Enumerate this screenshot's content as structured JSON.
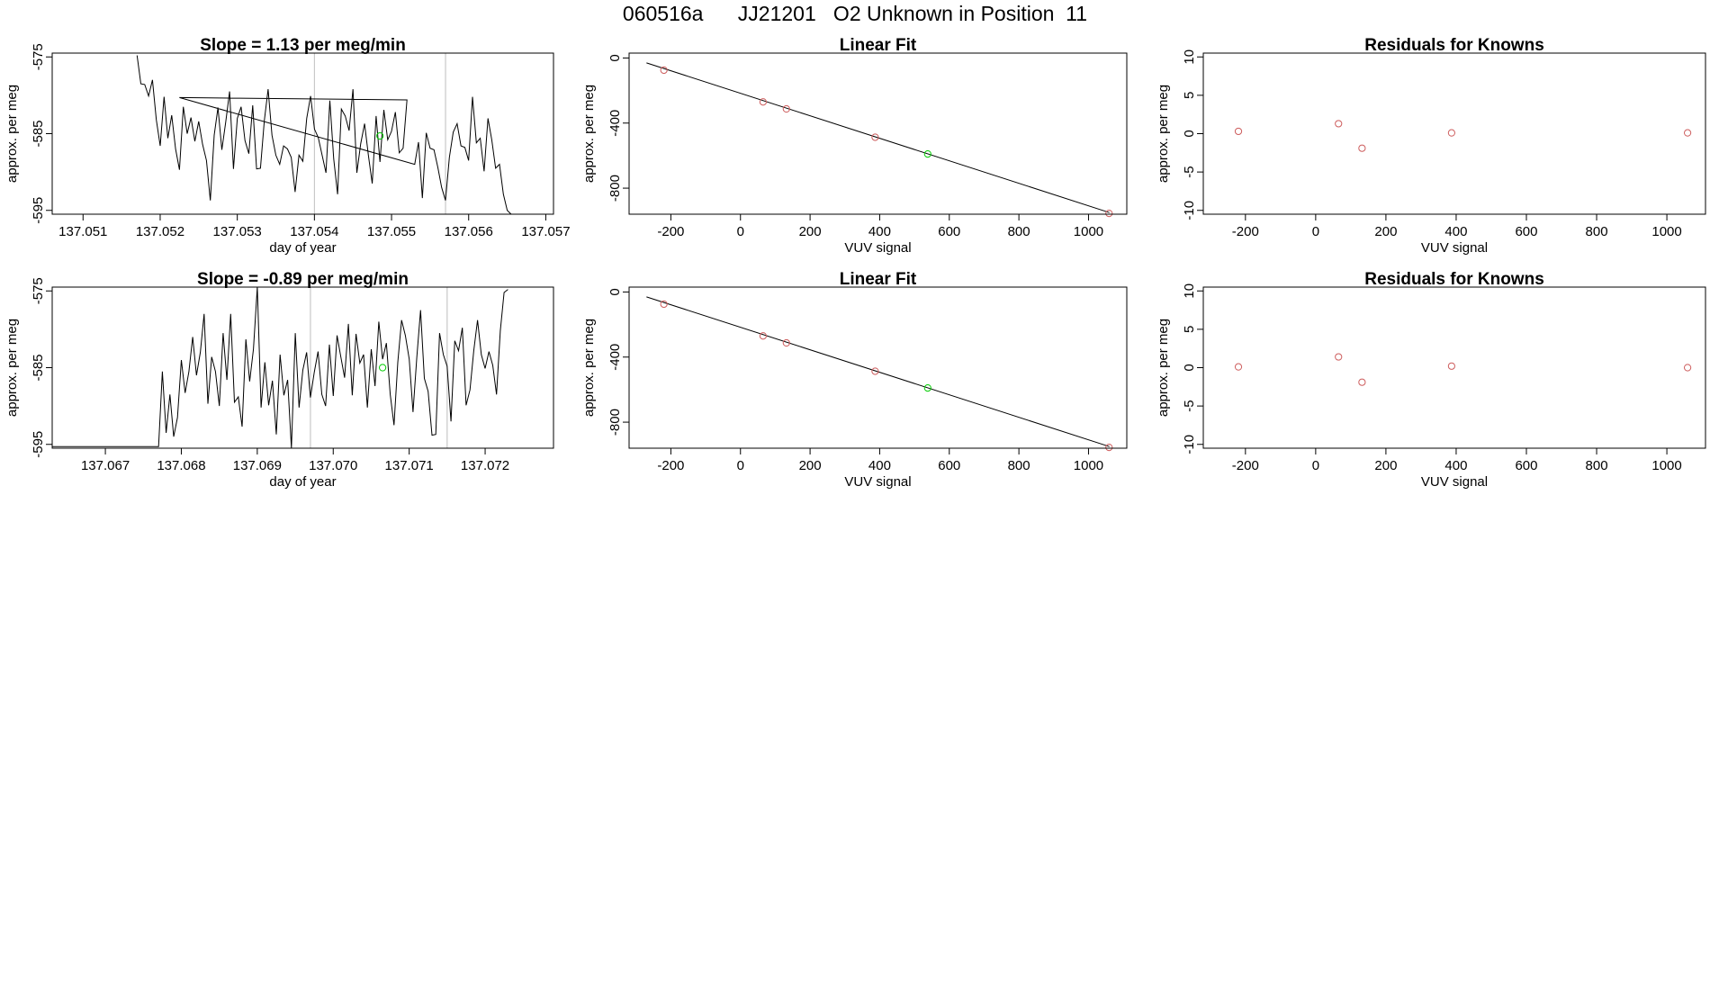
{
  "figure": {
    "title": "060516a      JJ21201   O2 Unknown in Position  11"
  },
  "colors": {
    "series": "#000000",
    "known_point": "#cd5c5c",
    "unknown_point": "#00cc00",
    "gridline": "#bebebe",
    "fit_line": "#000000"
  },
  "chart_data": [
    {
      "type": "line",
      "row": 1,
      "title": "Slope =  1.13  per meg/min",
      "xlabel": "day of year",
      "ylabel": "approx. per meg",
      "xlim": [
        137.0506,
        137.0571
      ],
      "ylim": [
        -595.5,
        -574.5
      ],
      "xticks": [
        137.051,
        137.052,
        137.053,
        137.054,
        137.055,
        137.056,
        137.057
      ],
      "xtick_labels": [
        "137.051",
        "137.052",
        "137.053",
        "137.054",
        "137.055",
        "137.056",
        "137.057"
      ],
      "yticks": [
        -575,
        -585,
        -595
      ],
      "ytick_labels": [
        "-575",
        "-585",
        "-595"
      ],
      "vlines": [
        137.054,
        137.0557
      ],
      "series": [
        {
          "x": [
            137.0517,
            137.05175,
            137.0518,
            137.05185,
            137.0519,
            137.05195,
            137.052,
            137.05205,
            137.0521,
            137.05215,
            137.0522,
            137.05225,
            137.0523,
            137.05235,
            137.0524,
            137.05245,
            137.0525,
            137.05255,
            137.0526,
            137.05265,
            137.0527,
            137.05275,
            137.0528,
            137.05285,
            137.0529,
            137.05295,
            137.053,
            137.05305,
            137.0531,
            137.05315,
            137.0532,
            137.05325,
            137.0533,
            137.05335,
            137.0534,
            137.05345,
            137.0535,
            137.05355,
            137.0536,
            137.05365,
            137.0537,
            137.05375,
            137.0538,
            137.05385,
            137.0539,
            137.05395,
            137.054,
            137.05405,
            137.0541,
            137.05415,
            137.0542,
            137.05425,
            137.0543,
            137.05435,
            137.0544,
            137.05445,
            137.0545,
            137.05455,
            137.0546,
            137.05465,
            137.0547,
            137.05475,
            137.0548,
            137.05485,
            137.0549,
            137.05495,
            137.055,
            137.05505,
            137.0551,
            137.05515,
            137.0552,
            137.05225,
            137.0553,
            137.05535,
            137.0554,
            137.05545,
            137.0555,
            137.05555,
            137.0556,
            137.05565,
            137.0557,
            137.05575,
            137.0558,
            137.05585,
            137.0559,
            137.05595,
            137.056,
            137.05605,
            137.0561,
            137.05615,
            137.0562,
            137.05625,
            137.0563,
            137.05635,
            137.0564,
            137.05645,
            137.0565,
            137.05655
          ],
          "y": [
            -574.8,
            -578.5,
            -578.6,
            -580.1,
            -578.0,
            -583.2,
            -586.6,
            -580.2,
            -585.6,
            -582.6,
            -587.0,
            -589.7,
            -581.5,
            -585.0,
            -582.9,
            -586.0,
            -583.4,
            -586.4,
            -588.5,
            -593.7,
            -585.2,
            -581.6,
            -587.1,
            -583.5,
            -579.5,
            -589.6,
            -583.0,
            -581.5,
            -585.9,
            -587.6,
            -581.3,
            -589.6,
            -589.5,
            -583.3,
            -579.2,
            -585.2,
            -587.8,
            -589.0,
            -586.6,
            -587.0,
            -588.1,
            -592.6,
            -587.8,
            -588.6,
            -583.0,
            -580.1,
            -584.4,
            -585.5,
            -587.8,
            -590.1,
            -580.7,
            -588.3,
            -592.9,
            -581.8,
            -582.7,
            -584.6,
            -579.2,
            -590.1,
            -586.3,
            -583.7,
            -587.8,
            -591.5,
            -582.7,
            -588.7,
            -581.9,
            -585.8,
            -584.7,
            -582.2,
            -587.5,
            -586.9,
            -580.6,
            -580.3,
            -589.0,
            -586.1,
            -593.4,
            -584.9,
            -586.9,
            -587.1,
            -589.4,
            -592.0,
            -593.7,
            -588.1,
            -584.8,
            -583.7,
            -586.6,
            -586.8,
            -588.5,
            -580.2,
            -586.2,
            -585.6,
            -589.9,
            -583.0,
            -585.8,
            -589.5,
            -589.0,
            -592.9,
            -595.0,
            -595.5
          ]
        }
      ],
      "highlight_points": [
        {
          "x": 137.05485,
          "y": -585.3,
          "color": "#00cc00"
        }
      ]
    },
    {
      "type": "scatter",
      "row": 1,
      "title": "Linear Fit",
      "xlabel": "VUV signal",
      "ylabel": "approx. per meg",
      "xlim": [
        -320,
        1110
      ],
      "ylim": [
        -960,
        30
      ],
      "xticks": [
        -200,
        0,
        200,
        400,
        600,
        800,
        1000
      ],
      "xtick_labels": [
        "-200",
        "0",
        "200",
        "400",
        "600",
        "800",
        "1000"
      ],
      "yticks": [
        0,
        -400,
        -800
      ],
      "ytick_labels": [
        "0",
        "-400",
        "-800"
      ],
      "fit_line": {
        "x": [
          -270,
          1060
        ],
        "y": [
          -30,
          -950
        ]
      },
      "series": [
        {
          "x": [
            -220,
            65,
            132,
            387,
            1059
          ],
          "y": [
            -75,
            -270,
            -313,
            -487,
            -955
          ],
          "color": "#cd5c5c"
        },
        {
          "x": [
            538
          ],
          "y": [
            -590
          ],
          "color": "#00cc00"
        }
      ]
    },
    {
      "type": "scatter",
      "row": 1,
      "title": "Residuals for Knowns",
      "xlabel": "VUV signal",
      "ylabel": "approx. per meg",
      "xlim": [
        -320,
        1110
      ],
      "ylim": [
        -10.5,
        10.5
      ],
      "xticks": [
        -200,
        0,
        200,
        400,
        600,
        800,
        1000
      ],
      "xtick_labels": [
        "-200",
        "0",
        "200",
        "400",
        "600",
        "800",
        "1000"
      ],
      "yticks": [
        10,
        5,
        0,
        -5,
        -10
      ],
      "ytick_labels": [
        "10",
        "5",
        "0",
        "-5",
        "-10"
      ],
      "series": [
        {
          "x": [
            -220,
            65,
            132,
            387,
            1059
          ],
          "y": [
            0.3,
            1.3,
            -1.9,
            0.1,
            0.1
          ],
          "color": "#cd5c5c"
        }
      ]
    },
    {
      "type": "line",
      "row": 2,
      "title": "Slope =  -0.89  per meg/min",
      "xlabel": "day of year",
      "ylabel": "approx. per meg",
      "xlim": [
        137.0663,
        137.0729
      ],
      "ylim": [
        -595.5,
        -574.5
      ],
      "xticks": [
        137.067,
        137.068,
        137.069,
        137.07,
        137.071,
        137.072
      ],
      "xtick_labels": [
        "137.067",
        "137.068",
        "137.069",
        "137.070",
        "137.071",
        "137.072"
      ],
      "yticks": [
        -575,
        -585,
        -595
      ],
      "ytick_labels": [
        "-575",
        "-585",
        "-595"
      ],
      "vlines": [
        137.0697,
        137.0715
      ],
      "series": [
        {
          "x": [
            137.0663,
            137.0677,
            137.06775,
            137.0678,
            137.06785,
            137.0679,
            137.06795,
            137.068,
            137.06805,
            137.0681,
            137.06815,
            137.0682,
            137.06825,
            137.0683,
            137.06835,
            137.0684,
            137.06845,
            137.0685,
            137.06855,
            137.0686,
            137.06865,
            137.0687,
            137.06875,
            137.0688,
            137.06885,
            137.0689,
            137.06895,
            137.069,
            137.06905,
            137.0691,
            137.06915,
            137.0692,
            137.06925,
            137.0693,
            137.06935,
            137.0694,
            137.06945,
            137.0695,
            137.06955,
            137.0696,
            137.06965,
            137.0697,
            137.06975,
            137.0698,
            137.06985,
            137.0699,
            137.06995,
            137.07,
            137.07005,
            137.0701,
            137.07015,
            137.0702,
            137.07025,
            137.0703,
            137.07035,
            137.0704,
            137.07045,
            137.0705,
            137.07055,
            137.0706,
            137.07065,
            137.0707,
            137.07075,
            137.0708,
            137.07085,
            137.0709,
            137.07095,
            137.071,
            137.07105,
            137.0711,
            137.07115,
            137.0712,
            137.07125,
            137.0713,
            137.07135,
            137.0714,
            137.07145,
            137.0715,
            137.07155,
            137.0716,
            137.07165,
            137.0717,
            137.07175,
            137.0718,
            137.07185,
            137.0719,
            137.07195,
            137.072,
            137.07205,
            137.0721,
            137.07215,
            137.0722,
            137.07225,
            137.0723
          ],
          "y": [
            -595.3,
            -595.3,
            -585.5,
            -593.5,
            -588.5,
            -594.0,
            -591.5,
            -584.0,
            -588.3,
            -585.5,
            -581.0,
            -586.0,
            -583.0,
            -578.0,
            -589.7,
            -583.6,
            -585.5,
            -590.0,
            -580.5,
            -586.6,
            -578.0,
            -589.5,
            -588.8,
            -592.7,
            -581.3,
            -586.8,
            -582.6,
            -574.5,
            -590.2,
            -584.3,
            -589.9,
            -586.7,
            -593.7,
            -583.3,
            -588.6,
            -586.6,
            -595.5,
            -580.5,
            -590.2,
            -585.3,
            -583.0,
            -588.9,
            -585.6,
            -582.9,
            -588.5,
            -590.0,
            -582.0,
            -588.7,
            -580.8,
            -583.6,
            -586.3,
            -579.3,
            -588.6,
            -580.6,
            -584.4,
            -583.3,
            -590.2,
            -582.6,
            -587.4,
            -579.0,
            -583.9,
            -581.8,
            -588.5,
            -592.5,
            -584.3,
            -578.8,
            -580.8,
            -583.9,
            -590.8,
            -583.7,
            -577.5,
            -586.4,
            -588.1,
            -593.8,
            -593.7,
            -580.5,
            -583.3,
            -584.8,
            -592.0,
            -581.5,
            -582.8,
            -579.8,
            -589.9,
            -587.9,
            -582.8,
            -578.8,
            -583.3,
            -585.1,
            -582.9,
            -584.7,
            -588.5,
            -580.2,
            -575.2,
            -574.8
          ]
        }
      ],
      "highlight_points": [
        {
          "x": 137.07065,
          "y": -585.0,
          "color": "#00cc00"
        }
      ]
    },
    {
      "type": "scatter",
      "row": 2,
      "title": "Linear Fit",
      "xlabel": "VUV signal",
      "ylabel": "approx. per meg",
      "xlim": [
        -320,
        1110
      ],
      "ylim": [
        -960,
        30
      ],
      "xticks": [
        -200,
        0,
        200,
        400,
        600,
        800,
        1000
      ],
      "xtick_labels": [
        "-200",
        "0",
        "200",
        "400",
        "600",
        "800",
        "1000"
      ],
      "yticks": [
        0,
        -400,
        -800
      ],
      "ytick_labels": [
        "0",
        "-400",
        "-800"
      ],
      "fit_line": {
        "x": [
          -270,
          1060
        ],
        "y": [
          -30,
          -950
        ]
      },
      "series": [
        {
          "x": [
            -220,
            65,
            132,
            387,
            1059
          ],
          "y": [
            -75,
            -270,
            -313,
            -487,
            -955
          ],
          "color": "#cd5c5c"
        },
        {
          "x": [
            538
          ],
          "y": [
            -590
          ],
          "color": "#00cc00"
        }
      ]
    },
    {
      "type": "scatter",
      "row": 2,
      "title": "Residuals for Knowns",
      "xlabel": "VUV signal",
      "ylabel": "approx. per meg",
      "xlim": [
        -320,
        1110
      ],
      "ylim": [
        -10.5,
        10.5
      ],
      "xticks": [
        -200,
        0,
        200,
        400,
        600,
        800,
        1000
      ],
      "xtick_labels": [
        "-200",
        "0",
        "200",
        "400",
        "600",
        "800",
        "1000"
      ],
      "yticks": [
        10,
        5,
        0,
        -5,
        -10
      ],
      "ytick_labels": [
        "10",
        "5",
        "0",
        "-5",
        "-10"
      ],
      "series": [
        {
          "x": [
            -220,
            65,
            132,
            387,
            1059
          ],
          "y": [
            0.1,
            1.4,
            -1.9,
            0.2,
            0.0
          ],
          "color": "#cd5c5c"
        }
      ]
    }
  ]
}
